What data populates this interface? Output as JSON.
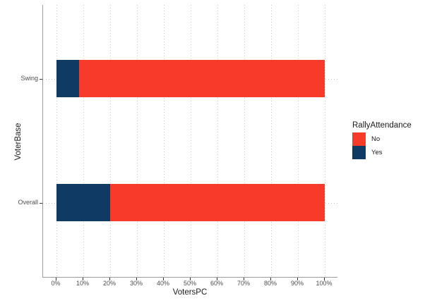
{
  "figure": {
    "kind": "ggplot-style stacked bar chart",
    "background": "#FFFFFF"
  },
  "axes": {
    "x_title": "VotersPC",
    "y_title": "VoterBase",
    "x_ticks": [
      {
        "value": 0,
        "label": "0%"
      },
      {
        "value": 10,
        "label": "10%"
      },
      {
        "value": 20,
        "label": "20%"
      },
      {
        "value": 30,
        "label": "30%"
      },
      {
        "value": 40,
        "label": "40%"
      },
      {
        "value": 50,
        "label": "50%"
      },
      {
        "value": 60,
        "label": "60%"
      },
      {
        "value": 70,
        "label": "70%"
      },
      {
        "value": 80,
        "label": "80%"
      },
      {
        "value": 90,
        "label": "90%"
      },
      {
        "value": 100,
        "label": "100%"
      }
    ],
    "y_ticks": [
      "Swing",
      "Overall"
    ]
  },
  "legend": {
    "title": "RallyAttendance",
    "position": "right",
    "items": [
      {
        "label": "No",
        "color": "#F83A28"
      },
      {
        "label": "Yes",
        "color": "#0E3A64"
      }
    ]
  },
  "chart_data": {
    "type": "bar",
    "orientation": "horizontal",
    "stacked": true,
    "units": "percent",
    "title": "",
    "xlabel": "VotersPC",
    "ylabel": "VoterBase",
    "xlim": [
      0,
      100
    ],
    "grid": "dotted, vertical at each 10% and horizontal at each category",
    "legend_position": "right",
    "categories": [
      "Swing",
      "Overall"
    ],
    "series": [
      {
        "name": "Yes",
        "color": "#0E3A64",
        "values": [
          8.3,
          20
        ]
      },
      {
        "name": "No",
        "color": "#F83A28",
        "values": [
          91.7,
          80
        ]
      }
    ]
  }
}
